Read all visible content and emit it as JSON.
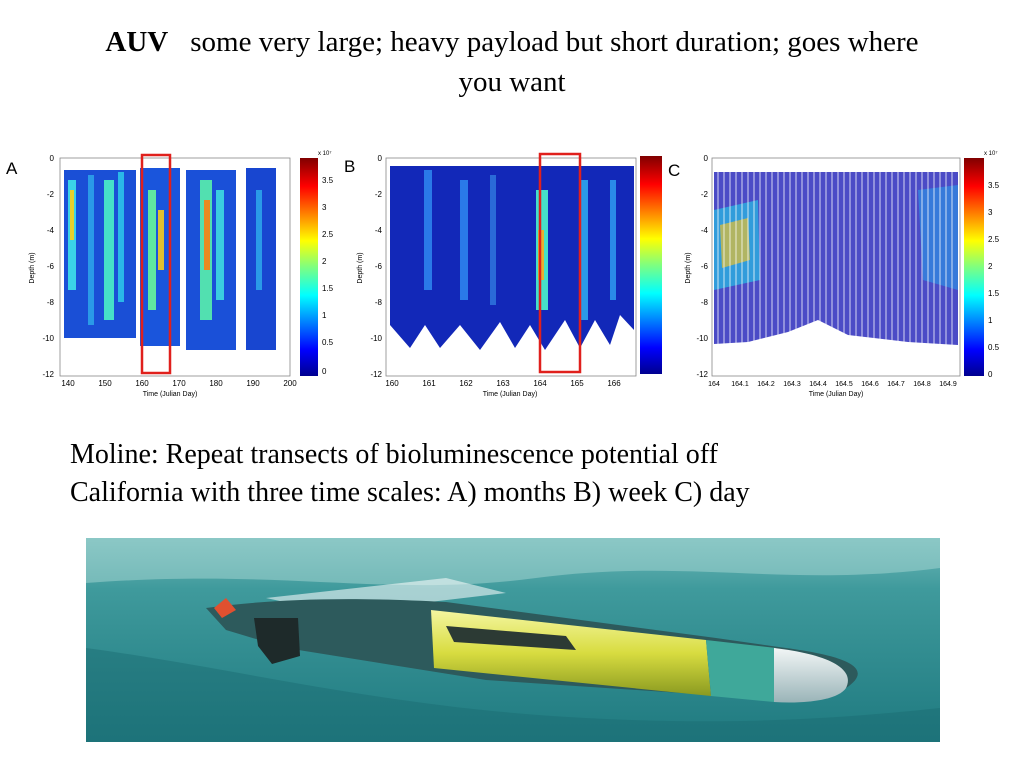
{
  "title": {
    "lead": "AUV",
    "line1": "some very large; heavy payload but short duration; goes where",
    "line2": "you want"
  },
  "caption": {
    "line1": "Moline:  Repeat transects of bioluminescence potential  off",
    "line2": "California with three time scales:  A) months B) week C) day"
  },
  "panels": [
    {
      "label": "A",
      "ylabel": "Depth (m)",
      "xlabel": "Time (Julian Day)",
      "xticks": [
        "140",
        "150",
        "160",
        "170",
        "180",
        "190",
        "200"
      ],
      "yticks": [
        "0",
        "-2",
        "-4",
        "-6",
        "-8",
        "-10",
        "-12"
      ],
      "colorbar_ticks": [
        "3.5",
        "3",
        "2.5",
        "2",
        "1.5",
        "1",
        "0.5",
        "0"
      ],
      "colorbar_exponent": "x 10⁷"
    },
    {
      "label": "B",
      "ylabel": "Depth (m)",
      "xlabel": "Time (Julian Day)",
      "xticks": [
        "160",
        "161",
        "162",
        "163",
        "164",
        "165",
        "166"
      ],
      "yticks": [
        "0",
        "-2",
        "-4",
        "-6",
        "-8",
        "-10",
        "-12"
      ],
      "colorbar_ticks": [],
      "colorbar_exponent": ""
    },
    {
      "label": "C",
      "ylabel": "Depth (m)",
      "xlabel": "Time (Julian Day)",
      "xticks": [
        "164",
        "164.1",
        "164.2",
        "164.3",
        "164.4",
        "164.5",
        "164.6",
        "164.7",
        "164.8",
        "164.9"
      ],
      "yticks": [
        "0",
        "-2",
        "-4",
        "-6",
        "-8",
        "-10",
        "-12"
      ],
      "colorbar_ticks": [
        "3.5",
        "3",
        "2.5",
        "2",
        "1.5",
        "1",
        "0.5",
        "0"
      ],
      "colorbar_exponent": "x 10⁷"
    }
  ],
  "colors": {
    "highlight": "#e0201c",
    "water": "#2a8a8a",
    "vehicle_yellow": "#d9df4a"
  }
}
